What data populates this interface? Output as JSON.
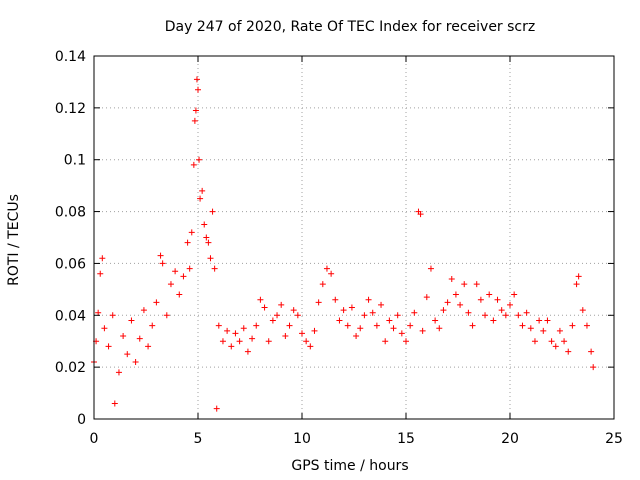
{
  "chart_data": {
    "type": "scatter",
    "title": "Day 247 of 2020, Rate Of TEC Index for receiver scrz",
    "xlabel": "GPS time / hours",
    "ylabel": "ROTI / TECUs",
    "xlim": [
      0,
      25
    ],
    "ylim": [
      0,
      0.14
    ],
    "xticks": [
      0,
      5,
      10,
      15,
      20,
      25
    ],
    "xtick_labels": [
      "0",
      "5",
      "10",
      "15",
      "20",
      "25"
    ],
    "yticks": [
      0,
      0.02,
      0.04,
      0.06,
      0.08,
      0.1,
      0.12,
      0.14
    ],
    "ytick_labels": [
      "0",
      "0.02",
      "0.04",
      "0.06",
      "0.08",
      "0.1",
      "0.12",
      "0.14"
    ],
    "grid": true,
    "marker": "plus",
    "color": "#ff0000",
    "series": [
      {
        "name": "ROTI",
        "points": [
          [
            0.0,
            0.022
          ],
          [
            0.1,
            0.03
          ],
          [
            0.2,
            0.041
          ],
          [
            0.3,
            0.056
          ],
          [
            0.4,
            0.062
          ],
          [
            0.5,
            0.035
          ],
          [
            0.7,
            0.028
          ],
          [
            0.9,
            0.04
          ],
          [
            1.0,
            0.006
          ],
          [
            1.2,
            0.018
          ],
          [
            1.4,
            0.032
          ],
          [
            1.6,
            0.025
          ],
          [
            1.8,
            0.038
          ],
          [
            2.0,
            0.022
          ],
          [
            2.2,
            0.031
          ],
          [
            2.4,
            0.042
          ],
          [
            2.6,
            0.028
          ],
          [
            2.8,
            0.036
          ],
          [
            3.0,
            0.045
          ],
          [
            3.2,
            0.063
          ],
          [
            3.3,
            0.06
          ],
          [
            3.5,
            0.04
          ],
          [
            3.7,
            0.052
          ],
          [
            3.9,
            0.057
          ],
          [
            4.1,
            0.048
          ],
          [
            4.3,
            0.055
          ],
          [
            4.5,
            0.068
          ],
          [
            4.6,
            0.058
          ],
          [
            4.7,
            0.072
          ],
          [
            4.8,
            0.098
          ],
          [
            4.85,
            0.115
          ],
          [
            4.9,
            0.119
          ],
          [
            4.95,
            0.131
          ],
          [
            5.0,
            0.127
          ],
          [
            5.05,
            0.1
          ],
          [
            5.1,
            0.085
          ],
          [
            5.2,
            0.088
          ],
          [
            5.3,
            0.075
          ],
          [
            5.4,
            0.07
          ],
          [
            5.5,
            0.068
          ],
          [
            5.6,
            0.062
          ],
          [
            5.7,
            0.08
          ],
          [
            5.8,
            0.058
          ],
          [
            5.9,
            0.004
          ],
          [
            6.0,
            0.036
          ],
          [
            6.2,
            0.03
          ],
          [
            6.4,
            0.034
          ],
          [
            6.6,
            0.028
          ],
          [
            6.8,
            0.033
          ],
          [
            7.0,
            0.03
          ],
          [
            7.2,
            0.035
          ],
          [
            7.4,
            0.026
          ],
          [
            7.6,
            0.031
          ],
          [
            7.8,
            0.036
          ],
          [
            8.0,
            0.046
          ],
          [
            8.2,
            0.043
          ],
          [
            8.4,
            0.03
          ],
          [
            8.6,
            0.038
          ],
          [
            8.8,
            0.04
          ],
          [
            9.0,
            0.044
          ],
          [
            9.2,
            0.032
          ],
          [
            9.4,
            0.036
          ],
          [
            9.6,
            0.042
          ],
          [
            9.8,
            0.04
          ],
          [
            10.0,
            0.033
          ],
          [
            10.2,
            0.03
          ],
          [
            10.4,
            0.028
          ],
          [
            10.6,
            0.034
          ],
          [
            10.8,
            0.045
          ],
          [
            11.0,
            0.052
          ],
          [
            11.2,
            0.058
          ],
          [
            11.4,
            0.056
          ],
          [
            11.6,
            0.046
          ],
          [
            11.8,
            0.038
          ],
          [
            12.0,
            0.042
          ],
          [
            12.2,
            0.036
          ],
          [
            12.4,
            0.043
          ],
          [
            12.6,
            0.032
          ],
          [
            12.8,
            0.035
          ],
          [
            13.0,
            0.04
          ],
          [
            13.2,
            0.046
          ],
          [
            13.4,
            0.041
          ],
          [
            13.6,
            0.036
          ],
          [
            13.8,
            0.044
          ],
          [
            14.0,
            0.03
          ],
          [
            14.2,
            0.038
          ],
          [
            14.4,
            0.035
          ],
          [
            14.6,
            0.04
          ],
          [
            14.8,
            0.033
          ],
          [
            15.0,
            0.03
          ],
          [
            15.2,
            0.036
          ],
          [
            15.4,
            0.041
          ],
          [
            15.6,
            0.08
          ],
          [
            15.7,
            0.079
          ],
          [
            15.8,
            0.034
          ],
          [
            16.0,
            0.047
          ],
          [
            16.2,
            0.058
          ],
          [
            16.4,
            0.038
          ],
          [
            16.6,
            0.035
          ],
          [
            16.8,
            0.042
          ],
          [
            17.0,
            0.045
          ],
          [
            17.2,
            0.054
          ],
          [
            17.4,
            0.048
          ],
          [
            17.6,
            0.044
          ],
          [
            17.8,
            0.052
          ],
          [
            18.0,
            0.041
          ],
          [
            18.2,
            0.036
          ],
          [
            18.4,
            0.052
          ],
          [
            18.6,
            0.046
          ],
          [
            18.8,
            0.04
          ],
          [
            19.0,
            0.048
          ],
          [
            19.2,
            0.038
          ],
          [
            19.4,
            0.046
          ],
          [
            19.6,
            0.042
          ],
          [
            19.8,
            0.04
          ],
          [
            20.0,
            0.044
          ],
          [
            20.2,
            0.048
          ],
          [
            20.4,
            0.04
          ],
          [
            20.6,
            0.036
          ],
          [
            20.8,
            0.041
          ],
          [
            21.0,
            0.035
          ],
          [
            21.2,
            0.03
          ],
          [
            21.4,
            0.038
          ],
          [
            21.6,
            0.034
          ],
          [
            21.8,
            0.038
          ],
          [
            22.0,
            0.03
          ],
          [
            22.2,
            0.028
          ],
          [
            22.4,
            0.034
          ],
          [
            22.6,
            0.03
          ],
          [
            22.8,
            0.026
          ],
          [
            23.0,
            0.036
          ],
          [
            23.2,
            0.052
          ],
          [
            23.3,
            0.055
          ],
          [
            23.5,
            0.042
          ],
          [
            23.7,
            0.036
          ],
          [
            23.9,
            0.026
          ],
          [
            24.0,
            0.02
          ]
        ]
      }
    ]
  }
}
